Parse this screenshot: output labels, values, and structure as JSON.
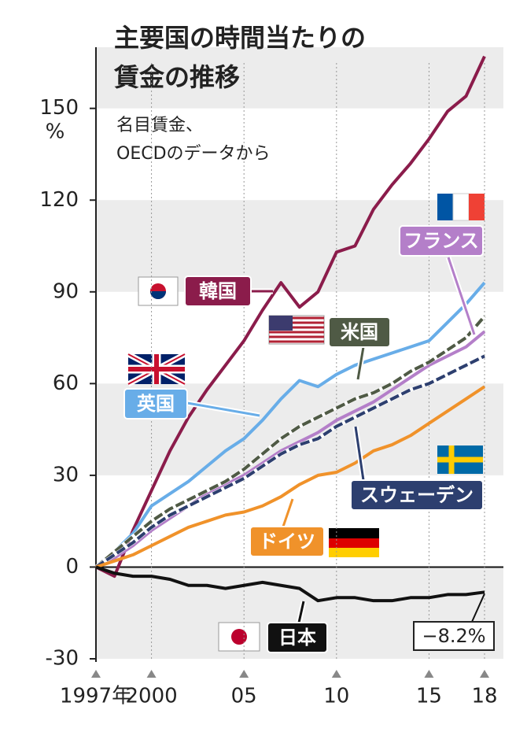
{
  "chart_data": {
    "type": "line",
    "title": [
      "主要国の時間当たりの",
      "賃金の推移"
    ],
    "subtitle": [
      "名目賃金、",
      "OECDのデータから"
    ],
    "y_unit": "%",
    "x": [
      1997,
      1998,
      1999,
      2000,
      2001,
      2002,
      2003,
      2004,
      2005,
      2006,
      2007,
      2008,
      2009,
      2010,
      2011,
      2012,
      2013,
      2014,
      2015,
      2016,
      2017,
      2018
    ],
    "xlim": [
      1997,
      2018
    ],
    "xticks": [
      {
        "value": 1997,
        "label": "1997年"
      },
      2000,
      {
        "value": 2005,
        "label": "05"
      },
      {
        "value": 2010,
        "label": "10"
      },
      {
        "value": 2015,
        "label": "15"
      },
      {
        "value": 2018,
        "label": "18"
      }
    ],
    "ylim": [
      -30,
      170
    ],
    "yticks": [
      -30,
      0,
      30,
      60,
      90,
      120,
      150
    ],
    "grid": true,
    "series": [
      {
        "name": "韓国",
        "color": "#8b1c4b",
        "style": "solid",
        "values": [
          0,
          -3,
          12,
          25,
          38,
          49,
          58,
          66,
          74,
          84,
          93,
          85,
          90,
          103,
          105,
          117,
          125,
          132,
          140,
          149,
          154,
          167
        ]
      },
      {
        "name": "フランス",
        "color": "#b47fc9",
        "style": "solid",
        "values": [
          0,
          3,
          7,
          12,
          16,
          20,
          24,
          27,
          30,
          34,
          38,
          41,
          44,
          48,
          51,
          54,
          58,
          62,
          66,
          69,
          72,
          77
        ]
      },
      {
        "name": "英国",
        "color": "#68ade8",
        "style": "solid",
        "values": [
          0,
          5,
          11,
          20,
          24,
          28,
          33,
          38,
          42,
          48,
          55,
          61,
          59,
          63,
          66,
          68,
          70,
          72,
          74,
          80,
          86,
          93
        ]
      },
      {
        "name": "米国",
        "color": "#4f5a45",
        "style": "dashed",
        "values": [
          0,
          5,
          10,
          15,
          19,
          22,
          25,
          28,
          32,
          37,
          42,
          46,
          49,
          52,
          55,
          57,
          60,
          64,
          67,
          71,
          75,
          82
        ]
      },
      {
        "name": "スウェーデン",
        "color": "#2d3f6f",
        "style": "dashed",
        "values": [
          0,
          4,
          8,
          13,
          17,
          20,
          23,
          26,
          29,
          33,
          37,
          40,
          42,
          46,
          49,
          52,
          55,
          58,
          60,
          63,
          66,
          69
        ]
      },
      {
        "name": "ドイツ",
        "color": "#f0922a",
        "style": "solid",
        "values": [
          0,
          2,
          4,
          7,
          10,
          13,
          15,
          17,
          18,
          20,
          23,
          27,
          30,
          31,
          34,
          38,
          40,
          43,
          47,
          51,
          55,
          59
        ]
      },
      {
        "name": "日本",
        "color": "#111111",
        "style": "solid",
        "values": [
          0,
          -2,
          -3,
          -3,
          -4,
          -6,
          -6,
          -7,
          -6,
          -5,
          -6,
          -7,
          -11,
          -10,
          -10,
          -11,
          -11,
          -10,
          -10,
          -9,
          -9,
          -8.2
        ],
        "value_labels": [
          null,
          null,
          null,
          null,
          null,
          null,
          null,
          null,
          null,
          null,
          null,
          null,
          null,
          null,
          null,
          null,
          null,
          null,
          null,
          null,
          null,
          "−8.2%"
        ]
      }
    ]
  }
}
